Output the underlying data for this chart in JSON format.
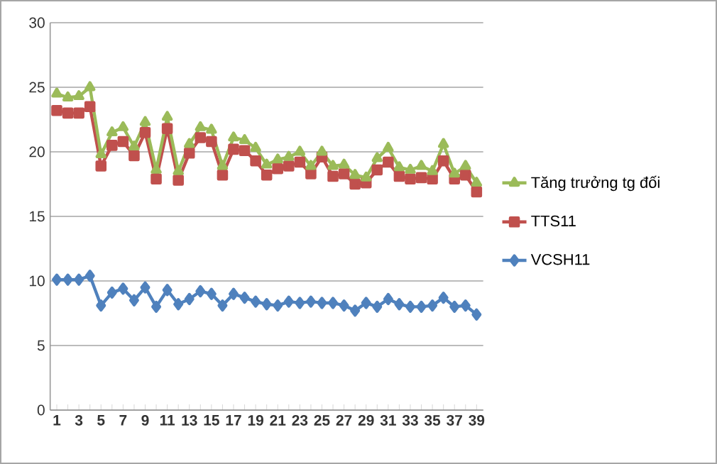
{
  "chart_data": {
    "type": "line",
    "categories": [
      "1",
      null,
      "3",
      null,
      "5",
      null,
      "7",
      null,
      "9",
      null,
      "11",
      null,
      "13",
      null,
      "15",
      null,
      "17",
      null,
      "19",
      null,
      "21",
      null,
      "23",
      null,
      "25",
      null,
      "27",
      null,
      "29",
      null,
      "31",
      null,
      "33",
      null,
      "35",
      null,
      "37",
      null,
      "39"
    ],
    "ylim": [
      0,
      30
    ],
    "yticks": [
      0,
      5,
      10,
      15,
      20,
      25,
      30
    ],
    "grid": "y",
    "legend": "right",
    "series": [
      {
        "name": "Tăng trưởng tg đối",
        "color": "#9bbb59",
        "marker": "triangle",
        "values": [
          24.5,
          24.2,
          24.3,
          25.0,
          19.8,
          21.5,
          21.9,
          20.4,
          22.3,
          18.6,
          22.7,
          18.5,
          20.6,
          21.9,
          21.7,
          18.9,
          21.1,
          20.9,
          20.3,
          19.0,
          19.4,
          19.6,
          20.0,
          18.9,
          20.0,
          18.9,
          19.0,
          18.2,
          18.0,
          19.5,
          20.3,
          18.8,
          18.6,
          18.9,
          18.5,
          20.6,
          18.3,
          18.9,
          17.6
        ]
      },
      {
        "name": "TTS11",
        "color": "#c0504d",
        "marker": "square",
        "values": [
          23.2,
          23.0,
          23.0,
          23.5,
          18.9,
          20.5,
          20.8,
          19.7,
          21.5,
          17.9,
          21.8,
          17.8,
          19.9,
          21.1,
          20.8,
          18.2,
          20.2,
          20.1,
          19.3,
          18.2,
          18.7,
          18.9,
          19.2,
          18.3,
          19.6,
          18.1,
          18.3,
          17.5,
          17.6,
          18.6,
          19.2,
          18.1,
          17.9,
          18.0,
          17.9,
          19.3,
          17.9,
          18.2,
          16.9
        ]
      },
      {
        "name": "VCSH11",
        "color": "#4f81bd",
        "marker": "diamond",
        "values": [
          10.1,
          10.1,
          10.1,
          10.4,
          8.1,
          9.1,
          9.4,
          8.5,
          9.5,
          8.0,
          9.3,
          8.2,
          8.6,
          9.2,
          9.0,
          8.1,
          9.0,
          8.7,
          8.4,
          8.2,
          8.1,
          8.4,
          8.3,
          8.4,
          8.3,
          8.3,
          8.1,
          7.7,
          8.3,
          8.0,
          8.6,
          8.2,
          8.0,
          8.0,
          8.1,
          8.7,
          8.0,
          8.1,
          7.4
        ]
      }
    ]
  }
}
